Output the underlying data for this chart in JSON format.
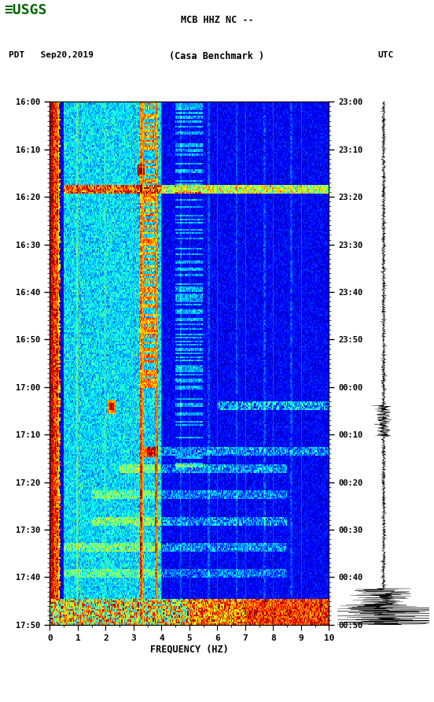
{
  "title_line1": "MCB HHZ NC --",
  "title_line2": "(Casa Benchmark )",
  "left_label": "PDT   Sep20,2019",
  "right_label": "UTC",
  "freq_label": "FREQUENCY (HZ)",
  "freq_min": 0,
  "freq_max": 10,
  "freq_ticks": [
    0,
    1,
    2,
    3,
    4,
    5,
    6,
    7,
    8,
    9,
    10
  ],
  "time_ticks_left": [
    "16:00",
    "16:10",
    "16:20",
    "16:30",
    "16:40",
    "16:50",
    "17:00",
    "17:10",
    "17:20",
    "17:30",
    "17:40",
    "17:50"
  ],
  "time_ticks_right": [
    "23:00",
    "23:10",
    "23:20",
    "23:30",
    "23:40",
    "23:50",
    "00:00",
    "00:10",
    "00:20",
    "00:30",
    "00:40",
    "00:50"
  ],
  "background_color": "#ffffff",
  "colormap": "jet",
  "seed": 12345,
  "n_time": 300,
  "n_freq": 300,
  "vmin": 0.0,
  "vmax": 1.0,
  "logo_color": "#006400"
}
